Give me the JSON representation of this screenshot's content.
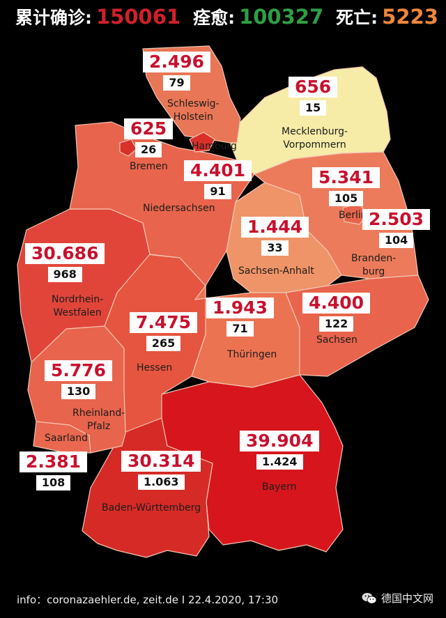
{
  "header": {
    "total_label": "累计确诊:",
    "total_value": "150061",
    "recovered_label": "痊愈:",
    "recovered_value": "100327",
    "deaths_label": "死亡:",
    "deaths_value": "5223"
  },
  "states": {
    "schleswig_holstein": {
      "name": "Schleswig-Holstein",
      "name_lines": [
        "Schleswig-",
        "Holstein"
      ],
      "cases": "2.496",
      "deaths": "79",
      "fill": "#e97656"
    },
    "mecklenburg_vorpommern": {
      "name": "Mecklenburg-Vorpommern",
      "name_lines": [
        "Mecklenburg-",
        "Vorpommern"
      ],
      "cases": "656",
      "deaths": "15",
      "fill": "#f6eca8"
    },
    "hamburg": {
      "name": "Hamburg",
      "cases": "",
      "deaths": "",
      "fill": "#d9302a"
    },
    "bremen": {
      "name": "Bremen",
      "cases": "625",
      "deaths": "26",
      "fill": "#d9302a"
    },
    "niedersachsen": {
      "name": "Niedersachsen",
      "cases": "4.401",
      "deaths": "91",
      "fill": "#e8644c"
    },
    "berlin": {
      "name": "Berlin",
      "cases": "5.341",
      "deaths": "105",
      "fill": "#e8644c"
    },
    "brandenburg": {
      "name": "Brandenburg",
      "name_lines": [
        "Branden-",
        "burg"
      ],
      "cases": "2.503",
      "deaths": "104",
      "fill": "#ec7b5b"
    },
    "sachsen_anhalt": {
      "name": "Sachsen-Anhalt",
      "cases": "1.444",
      "deaths": "33",
      "fill": "#ef9468"
    },
    "nordrhein_westfalen": {
      "name": "Nordrhein-Westfalen",
      "name_lines": [
        "Nordrhein-",
        "Westfalen"
      ],
      "cases": "30.686",
      "deaths": "968",
      "fill": "#e1453a"
    },
    "hessen": {
      "name": "Hessen",
      "cases": "7.475",
      "deaths": "265",
      "fill": "#e6553f"
    },
    "thueringen": {
      "name": "Thüringen",
      "cases": "1.943",
      "deaths": "71",
      "fill": "#ec7352"
    },
    "sachsen": {
      "name": "Sachsen",
      "cases": "4.400",
      "deaths": "122",
      "fill": "#e8644c"
    },
    "rheinland_pfalz": {
      "name": "Rheinland-Pfalz",
      "name_lines": [
        "Rheinland-",
        "Pfalz"
      ],
      "cases": "5.776",
      "deaths": "130",
      "fill": "#e8644c"
    },
    "saarland": {
      "name": "Saarland",
      "cases": "2.381",
      "deaths": "108",
      "fill": "#e9684f"
    },
    "baden_wuerttemberg": {
      "name": "Baden-Württemberg",
      "cases": "30.314",
      "deaths": "1.063",
      "fill": "#d62a26"
    },
    "bayern": {
      "name": "Bayern",
      "cases": "39.904",
      "deaths": "1.424",
      "fill": "#d6161c"
    }
  },
  "footer": {
    "source": "info：coronazaehler.de, zeit.de I   22.4.2020, 17:30",
    "brand": "德国中文网",
    "brand_icon": "wechat-icon"
  }
}
